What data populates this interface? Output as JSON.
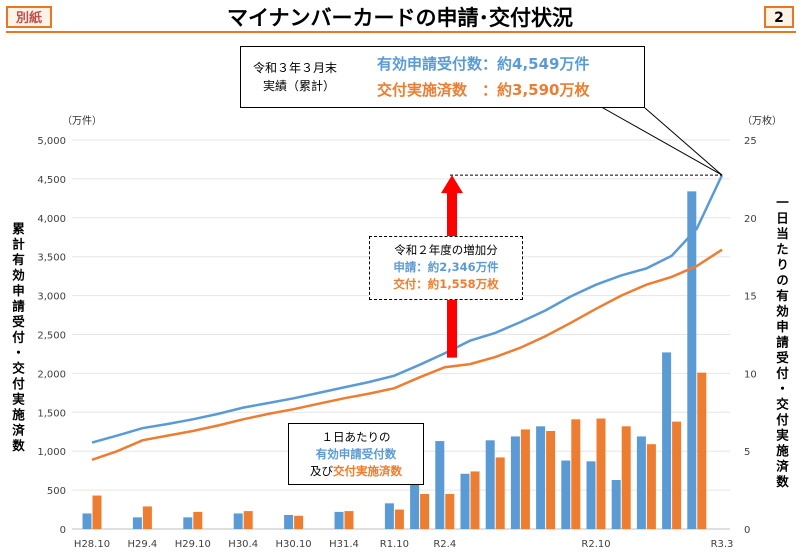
{
  "header": {
    "tag": "別紙",
    "title": "マイナンバーカードの申請･交付状況",
    "page_number": "2"
  },
  "summary_box": {
    "label_line1": "令和３年３月末",
    "label_line2": "実績（累計）",
    "applications": "有効申請受付数：約4,549万件",
    "issued": "交付実施済数　：約3,590万枚"
  },
  "increase_box": {
    "heading": "令和２年度の増加分",
    "applications": "申請：約2,346万件",
    "issued": "交付：約1,558万枚"
  },
  "daily_box": {
    "line1": "１日あたりの",
    "line2": "有効申請受付数",
    "line3_prefix": "及び",
    "line3_highlight": "交付実施済数"
  },
  "axes": {
    "left_unit": "（万件）",
    "right_unit": "（万枚）",
    "left_label": "累計有効申請受付・交付実施済数",
    "right_label": "一日当たりの有効申請受付・交付実施済数"
  },
  "colors": {
    "applications": "#5b9bd5",
    "issued": "#ed7d31",
    "arrow": "#ff0000",
    "accent": "#e87722"
  },
  "chart_data": {
    "type": "bar+line",
    "left_axis": {
      "ylim": [
        0,
        5000
      ],
      "ticks": [
        "0",
        "500",
        "1,000",
        "1,500",
        "2,000",
        "2,500",
        "3,000",
        "3,500",
        "4,000",
        "4,500",
        "5,000"
      ]
    },
    "right_axis": {
      "ylim": [
        0,
        25
      ],
      "ticks": [
        "0",
        "5",
        "10",
        "15",
        "20",
        "25"
      ]
    },
    "x_labels": [
      {
        "i": 0,
        "label": "H28.10"
      },
      {
        "i": 2,
        "label": "H29.4"
      },
      {
        "i": 4,
        "label": "H29.10"
      },
      {
        "i": 6,
        "label": "H30.4"
      },
      {
        "i": 8,
        "label": "H30.10"
      },
      {
        "i": 10,
        "label": "H31.4"
      },
      {
        "i": 12,
        "label": "R1.10"
      },
      {
        "i": 14,
        "label": "R2.4"
      },
      {
        "i": 20,
        "label": "R2.10"
      },
      {
        "i": 25,
        "label": "R3.3"
      }
    ],
    "lines": {
      "applications_cumulative": [
        1110,
        1200,
        1295,
        1350,
        1410,
        1480,
        1560,
        1620,
        1680,
        1750,
        1820,
        1890,
        1970,
        2110,
        2260,
        2420,
        2520,
        2660,
        2810,
        2990,
        3140,
        3260,
        3350,
        3510,
        3860,
        4549
      ],
      "issued_cumulative": [
        890,
        1000,
        1140,
        1200,
        1260,
        1330,
        1410,
        1480,
        1540,
        1610,
        1680,
        1740,
        1810,
        1950,
        2080,
        2120,
        2210,
        2330,
        2480,
        2650,
        2830,
        3000,
        3140,
        3240,
        3380,
        3590
      ]
    },
    "bars": {
      "applications_daily": [
        1.0,
        null,
        0.75,
        null,
        0.75,
        null,
        1.0,
        null,
        0.9,
        null,
        1.1,
        null,
        1.65,
        2.85,
        5.65,
        3.55,
        5.7,
        5.95,
        6.6,
        4.4,
        4.35,
        3.15,
        5.95,
        11.35,
        21.7,
        null
      ],
      "issued_daily": [
        2.15,
        null,
        1.45,
        null,
        1.1,
        null,
        1.15,
        null,
        0.85,
        null,
        1.15,
        null,
        1.25,
        2.25,
        2.25,
        3.7,
        4.6,
        6.4,
        6.3,
        7.05,
        7.1,
        6.6,
        5.45,
        6.9,
        10.05,
        null
      ]
    },
    "annotations": {
      "final_applications": 4549,
      "final_issued": 3590,
      "increase_applications": 2346,
      "increase_issued": 1558
    }
  }
}
